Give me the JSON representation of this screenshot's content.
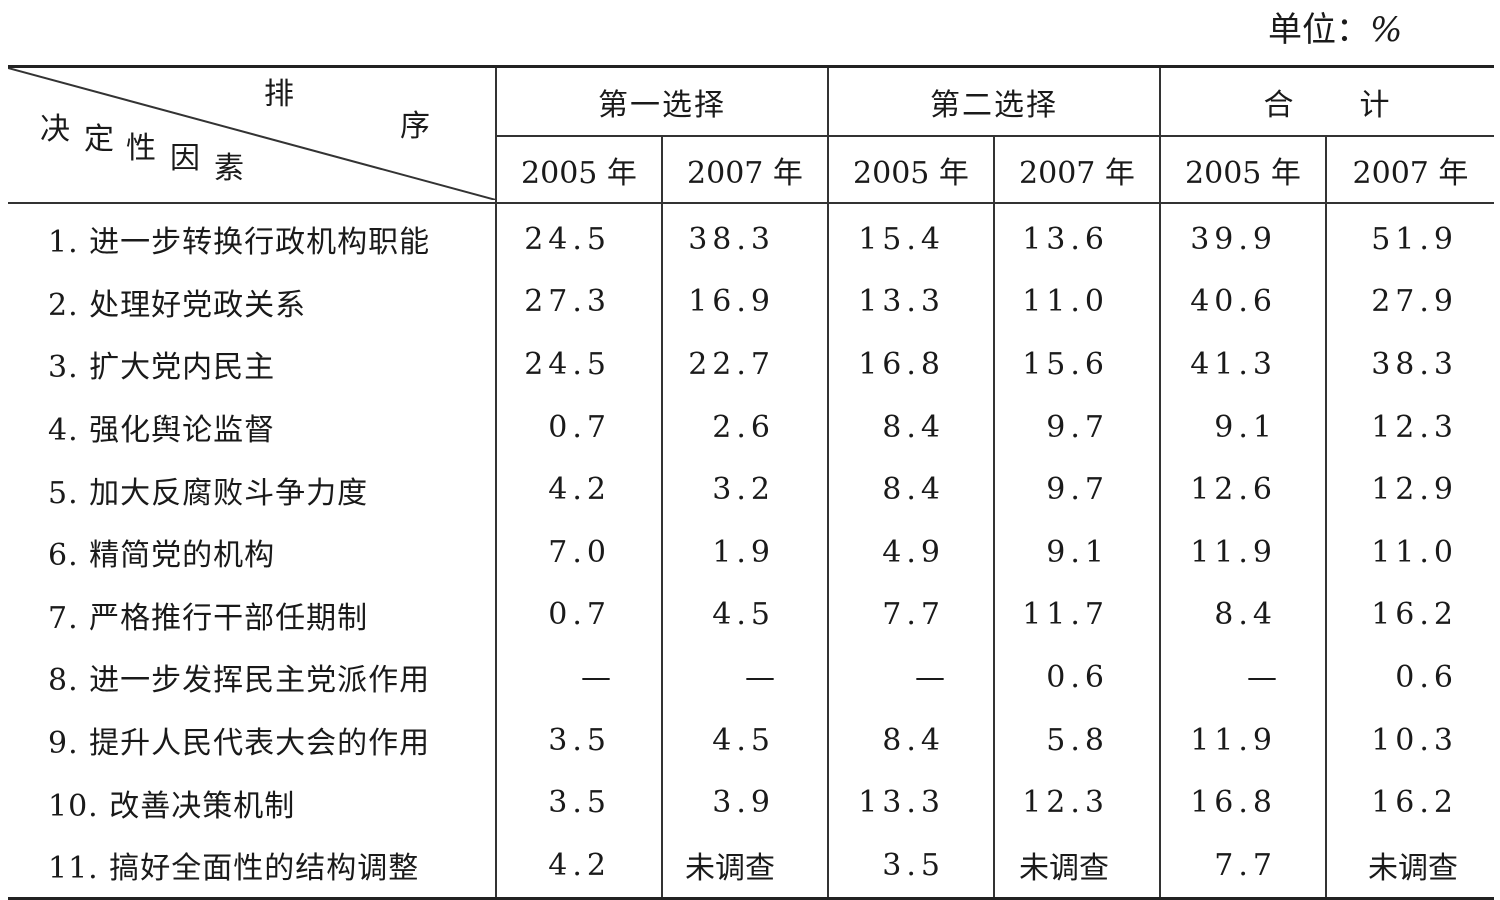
{
  "unit": {
    "label": "单位：",
    "symbol": "%"
  },
  "header": {
    "corner_top": "排",
    "corner_right": "序",
    "corner_left_chars": [
      "决",
      "定",
      "性",
      "因",
      "素"
    ],
    "groups": [
      "第一选择",
      "第二选择",
      "合　　计"
    ],
    "years": [
      "2005 年",
      "2007 年",
      "2005 年",
      "2007 年",
      "2005 年",
      "2007 年"
    ]
  },
  "rows": [
    {
      "label": "1.  进一步转换行政机构职能",
      "values": [
        "24.5",
        "38.3",
        "15.4",
        "13.6",
        "39.9",
        "51.9"
      ]
    },
    {
      "label": "2.  处理好党政关系",
      "values": [
        "27.3",
        "16.9",
        "13.3",
        "11.0",
        "40.6",
        "27.9"
      ]
    },
    {
      "label": "3.  扩大党内民主",
      "values": [
        "24.5",
        "22.7",
        "16.8",
        "15.6",
        "41.3",
        "38.3"
      ]
    },
    {
      "label": "4.  强化舆论监督",
      "values": [
        "0.7",
        "2.6",
        "8.4",
        "9.7",
        "9.1",
        "12.3"
      ]
    },
    {
      "label": "5.  加大反腐败斗争力度",
      "values": [
        "4.2",
        "3.2",
        "8.4",
        "9.7",
        "12.6",
        "12.9"
      ]
    },
    {
      "label": "6.  精简党的机构",
      "values": [
        "7.0",
        "1.9",
        "4.9",
        "9.1",
        "11.9",
        "11.0"
      ]
    },
    {
      "label": "7.  严格推行干部任期制",
      "values": [
        "0.7",
        "4.5",
        "7.7",
        "11.7",
        "8.4",
        "16.2"
      ]
    },
    {
      "label": "8.  进一步发挥民主党派作用",
      "values": [
        "—",
        "—",
        "—",
        "0.6",
        "—",
        "0.6"
      ]
    },
    {
      "label": "9.  提升人民代表大会的作用",
      "values": [
        "3.5",
        "4.5",
        "8.4",
        "5.8",
        "11.9",
        "10.3"
      ]
    },
    {
      "label": "10.  改善决策机制",
      "values": [
        "3.5",
        "3.9",
        "13.3",
        "12.3",
        "16.8",
        "16.2"
      ]
    },
    {
      "label": "11.  搞好全面性的结构调整",
      "values": [
        "4.2",
        "未调查",
        "3.5",
        "未调查",
        "7.7",
        "未调查"
      ]
    }
  ]
}
